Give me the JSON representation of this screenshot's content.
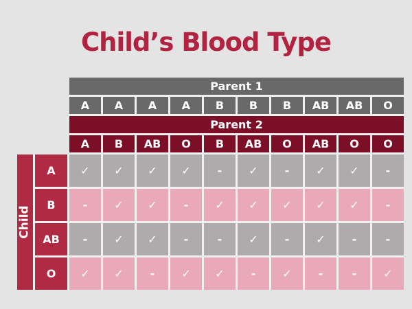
{
  "slide": {
    "title": "Child’s Blood Type"
  },
  "colors": {
    "background": "#E5E4E4",
    "title": "#B12340",
    "gray_header": "#6A6969",
    "maroon_header": "#7C0F27",
    "child_red": "#B02A43",
    "gray_cell": "#ADABAB",
    "pink_cell": "#E9A9B9",
    "grid_line": "#F1F0F0",
    "cell_text": "#FFFFFF"
  },
  "chart_data": {
    "type": "table",
    "title": "Child’s Blood Type",
    "row_group_label": "Child",
    "column_groups": [
      {
        "label": "Parent 1",
        "values": [
          "A",
          "A",
          "A",
          "A",
          "B",
          "B",
          "B",
          "AB",
          "AB",
          "O"
        ]
      },
      {
        "label": "Parent 2",
        "values": [
          "A",
          "B",
          "AB",
          "O",
          "B",
          "AB",
          "O",
          "AB",
          "O",
          "O"
        ]
      }
    ],
    "rows": [
      {
        "label": "A",
        "possible": [
          1,
          1,
          1,
          1,
          0,
          1,
          0,
          1,
          1,
          0
        ]
      },
      {
        "label": "B",
        "possible": [
          0,
          1,
          1,
          0,
          1,
          1,
          1,
          1,
          1,
          0
        ]
      },
      {
        "label": "AB",
        "possible": [
          0,
          1,
          1,
          0,
          0,
          1,
          0,
          1,
          0,
          0
        ]
      },
      {
        "label": "O",
        "possible": [
          1,
          1,
          0,
          1,
          1,
          0,
          1,
          0,
          0,
          1
        ]
      }
    ],
    "row_styles": [
      "gray",
      "pink",
      "gray",
      "pink"
    ],
    "check_symbol": "✓",
    "not_possible_symbol": "-"
  }
}
